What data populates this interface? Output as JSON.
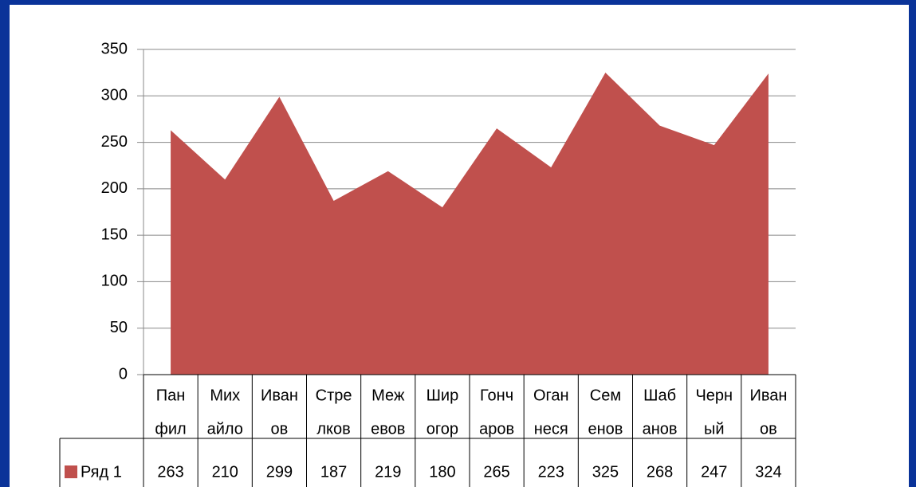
{
  "chart_data": {
    "type": "area",
    "categories": [
      [
        "Пан",
        "фил"
      ],
      [
        "Мих",
        "айло"
      ],
      [
        "Иван",
        "ов"
      ],
      [
        "Стре",
        "лков"
      ],
      [
        "Меж",
        "евов"
      ],
      [
        "Шир",
        "огор"
      ],
      [
        "Гонч",
        "аров"
      ],
      [
        "Оган",
        "неся"
      ],
      [
        "Сем",
        "енов"
      ],
      [
        "Шаб",
        "анов"
      ],
      [
        "Черн",
        "ый"
      ],
      [
        "Иван",
        "ов"
      ]
    ],
    "series": [
      {
        "name": "Ряд 1",
        "color": "#c0504d",
        "values": [
          263,
          210,
          299,
          187,
          219,
          180,
          265,
          223,
          325,
          268,
          247,
          324
        ]
      }
    ],
    "ylim": [
      0,
      350
    ],
    "yticks": [
      0,
      50,
      100,
      150,
      200,
      250,
      300,
      350
    ],
    "grid": true,
    "data_table": true
  }
}
